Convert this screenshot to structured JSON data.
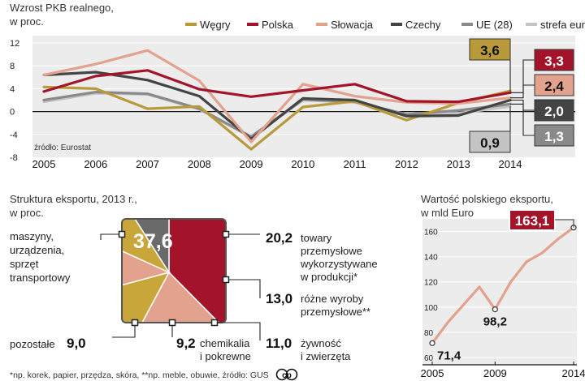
{
  "colors": {
    "wegry": "#b99a3a",
    "polska": "#a3142a",
    "slowacja": "#e3a28e",
    "czechy": "#444444",
    "ue": "#8a8a8a",
    "strefa": "#c4c4c4",
    "other_slice": "#6a6a6a",
    "export_line": "#e3a28e",
    "export_badge": "#a3142a",
    "band": "#ececec"
  },
  "chart_data": [
    {
      "type": "line",
      "title": "Wzrost PKB realnego,",
      "subtitle": "w proc.",
      "source": "źródło: Eurostat",
      "x": [
        2005,
        2006,
        2007,
        2008,
        2009,
        2010,
        2011,
        2012,
        2013,
        2014
      ],
      "ylim": [
        -8,
        12
      ],
      "yticks": [
        -8,
        -4,
        0,
        4,
        8,
        12
      ],
      "series": [
        {
          "key": "wegry",
          "name": "Węgry",
          "values": [
            4.3,
            4.0,
            0.5,
            0.9,
            -6.6,
            0.8,
            1.8,
            -1.5,
            1.5,
            3.6
          ],
          "label": "3,6"
        },
        {
          "key": "polska",
          "name": "Polska",
          "values": [
            3.5,
            6.2,
            7.2,
            3.9,
            2.6,
            3.7,
            4.8,
            1.8,
            1.7,
            3.3
          ],
          "label": "3,3"
        },
        {
          "key": "slowacja",
          "name": "Słowacja",
          "values": [
            6.4,
            8.3,
            10.7,
            5.4,
            -5.3,
            4.8,
            2.7,
            1.6,
            1.4,
            2.4
          ],
          "label": "2,4"
        },
        {
          "key": "czechy",
          "name": "Czechy",
          "values": [
            6.4,
            6.9,
            5.5,
            2.7,
            -4.8,
            2.3,
            2.0,
            -0.8,
            -0.7,
            2.0
          ],
          "label": "2,0"
        },
        {
          "key": "ue",
          "name": "UE (28)",
          "values": [
            2.0,
            3.4,
            3.1,
            0.5,
            -4.4,
            2.1,
            1.7,
            -0.5,
            0.2,
            1.3
          ],
          "label": "1,3"
        },
        {
          "key": "strefa",
          "name": "strefa euro",
          "values": [
            1.7,
            3.2,
            3.0,
            0.4,
            -4.5,
            2.0,
            1.6,
            -0.8,
            -0.3,
            0.9
          ],
          "label": "0,9"
        }
      ]
    },
    {
      "type": "pie",
      "title": "Struktura eksportu, 2013 r.,",
      "subtitle": "w proc.",
      "slices": [
        {
          "key": "maszyny",
          "value": 37.6,
          "label": "37,6",
          "text": [
            "maszyny,",
            "urządzenia,",
            "sprzęt",
            "transportowy"
          ],
          "color": "#a3142a"
        },
        {
          "key": "towary",
          "value": 20.2,
          "label": "20,2",
          "text": [
            "towary",
            "przemysłowe",
            "wykorzystywane",
            "w produkcji*"
          ],
          "color": "#e3a28e"
        },
        {
          "key": "rozne",
          "value": 13.0,
          "label": "13,0",
          "text": [
            "różne wyroby",
            "przemysłowe**"
          ],
          "color": "#c9a63a"
        },
        {
          "key": "zywnosc",
          "value": 11.0,
          "label": "11,0",
          "text": [
            "żywność",
            "i zwierzęta"
          ],
          "color": "#e3a28e"
        },
        {
          "key": "chemikalia",
          "value": 9.2,
          "label": "9,2",
          "text": [
            "chemikalia",
            "i pokrewne"
          ],
          "color": "#c9a63a"
        },
        {
          "key": "pozostale",
          "value": 9.0,
          "label": "9,0",
          "text": [
            "pozostałe"
          ],
          "color": "#6a6a6a"
        }
      ]
    },
    {
      "type": "line",
      "title": "Wartość polskiego eksportu,",
      "subtitle": "w mld Euro",
      "x": [
        2005,
        2006,
        2007,
        2008,
        2009,
        2010,
        2011,
        2012,
        2013,
        2014
      ],
      "values": [
        71.4,
        88.0,
        102.0,
        116.0,
        98.2,
        120.0,
        136.0,
        143.0,
        154.0,
        163.1
      ],
      "ylim": [
        60,
        170
      ],
      "yticks": [
        60,
        80,
        100,
        120,
        140,
        160
      ],
      "xticks": [
        2005,
        2009,
        2014
      ],
      "point_labels": [
        {
          "index": 0,
          "label": "71,4"
        },
        {
          "index": 4,
          "label": "98,2"
        },
        {
          "index": 9,
          "label": "163,1"
        }
      ]
    }
  ],
  "footnote": "*np. korek, papier, przędza, skóra, **np. meble, obuwie, źródło: GUS",
  "logo": "cp"
}
